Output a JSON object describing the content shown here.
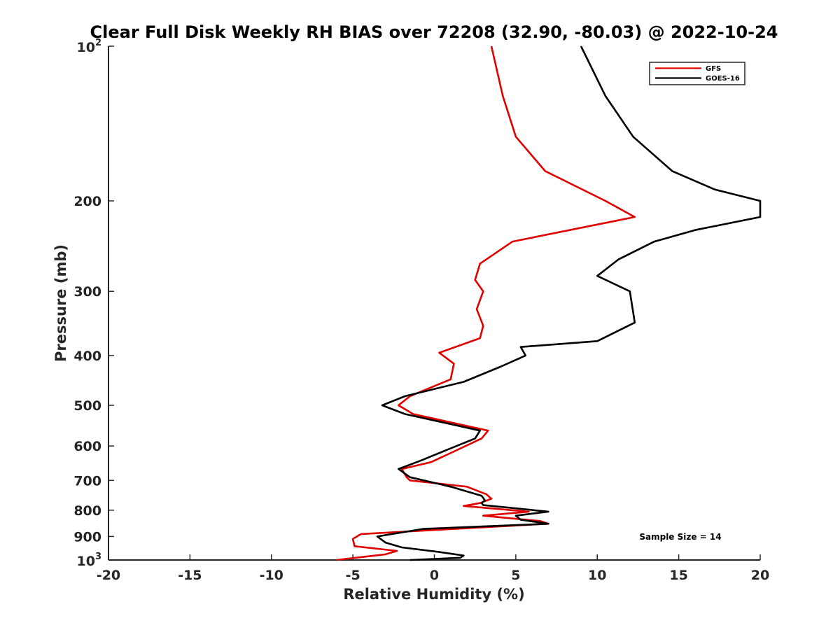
{
  "chart_data": {
    "type": "line",
    "title": "Clear Full Disk Weekly RH BIAS over 72208 (32.90, -80.03) @ 2022-10-24",
    "xlabel": "Relative Humidity (%)",
    "ylabel": "Pressure (mb)",
    "xlim": [
      -20,
      20
    ],
    "ylim": [
      100,
      1000
    ],
    "y_scale": "log",
    "y_reversed": true,
    "x_ticks": [
      "-20",
      "-15",
      "-10",
      "-5",
      "0",
      "5",
      "10",
      "15",
      "20"
    ],
    "x_tick_values": [
      -20,
      -15,
      -10,
      -5,
      0,
      5,
      10,
      15,
      20
    ],
    "y_ticks": [
      {
        "value": 100,
        "base": "10",
        "exp": "2"
      },
      {
        "value": 200,
        "label": "200"
      },
      {
        "value": 300,
        "label": "300"
      },
      {
        "value": 400,
        "label": "400"
      },
      {
        "value": 500,
        "label": "500"
      },
      {
        "value": 600,
        "label": "600"
      },
      {
        "value": 700,
        "label": "700"
      },
      {
        "value": 800,
        "label": "800"
      },
      {
        "value": 900,
        "label": "900"
      },
      {
        "value": 1000,
        "base": "10",
        "exp": "3"
      }
    ],
    "legend_position": "top-right",
    "grid": false,
    "annotation": "Sample Size = 14",
    "series": [
      {
        "name": "GFS",
        "color": "#e00000",
        "points": [
          [
            3.5,
            100
          ],
          [
            4.2,
            125
          ],
          [
            5.0,
            150
          ],
          [
            6.8,
            175
          ],
          [
            10.5,
            200
          ],
          [
            12.3,
            215
          ],
          [
            4.8,
            240
          ],
          [
            2.8,
            265
          ],
          [
            2.5,
            285
          ],
          [
            3.0,
            300
          ],
          [
            2.6,
            325
          ],
          [
            3.0,
            350
          ],
          [
            2.8,
            370
          ],
          [
            0.3,
            395
          ],
          [
            1.2,
            415
          ],
          [
            1.0,
            445
          ],
          [
            -1.5,
            480
          ],
          [
            -2.2,
            500
          ],
          [
            -1.3,
            520
          ],
          [
            3.3,
            560
          ],
          [
            2.9,
            580
          ],
          [
            1.2,
            615
          ],
          [
            -0.2,
            645
          ],
          [
            -2.0,
            665
          ],
          [
            -1.7,
            690
          ],
          [
            -1.5,
            700
          ],
          [
            2.0,
            720
          ],
          [
            3.2,
            745
          ],
          [
            3.5,
            760
          ],
          [
            2.8,
            775
          ],
          [
            1.8,
            785
          ],
          [
            5.8,
            805
          ],
          [
            3.0,
            820
          ],
          [
            6.5,
            840
          ],
          [
            7.0,
            850
          ],
          [
            -4.5,
            890
          ],
          [
            -5.0,
            910
          ],
          [
            -4.9,
            940
          ],
          [
            -2.3,
            960
          ],
          [
            -3.0,
            975
          ],
          [
            -6.0,
            1000
          ]
        ]
      },
      {
        "name": "GOES-16",
        "color": "#000000",
        "points": [
          [
            9.0,
            100
          ],
          [
            10.5,
            125
          ],
          [
            12.2,
            150
          ],
          [
            14.6,
            175
          ],
          [
            17.2,
            190
          ],
          [
            20.0,
            200
          ],
          [
            20.0,
            215
          ],
          [
            16.0,
            228
          ],
          [
            13.5,
            240
          ],
          [
            11.3,
            260
          ],
          [
            10.0,
            280
          ],
          [
            12.0,
            300
          ],
          [
            12.3,
            345
          ],
          [
            10.0,
            375
          ],
          [
            5.3,
            385
          ],
          [
            5.6,
            400
          ],
          [
            4.1,
            420
          ],
          [
            1.8,
            450
          ],
          [
            -1.8,
            480
          ],
          [
            -3.2,
            500
          ],
          [
            -1.8,
            520
          ],
          [
            2.8,
            560
          ],
          [
            2.5,
            580
          ],
          [
            0.8,
            610
          ],
          [
            -0.8,
            640
          ],
          [
            -2.2,
            665
          ],
          [
            -1.5,
            690
          ],
          [
            1.0,
            720
          ],
          [
            2.9,
            750
          ],
          [
            3.1,
            765
          ],
          [
            2.9,
            775
          ],
          [
            3.0,
            782
          ],
          [
            7.0,
            805
          ],
          [
            5.0,
            820
          ],
          [
            5.3,
            835
          ],
          [
            7.0,
            850
          ],
          [
            -0.7,
            870
          ],
          [
            -3.5,
            900
          ],
          [
            -3.0,
            925
          ],
          [
            -2.0,
            945
          ],
          [
            0.3,
            965
          ],
          [
            1.8,
            980
          ],
          [
            1.6,
            990
          ],
          [
            -1.5,
            1000
          ]
        ]
      }
    ]
  }
}
